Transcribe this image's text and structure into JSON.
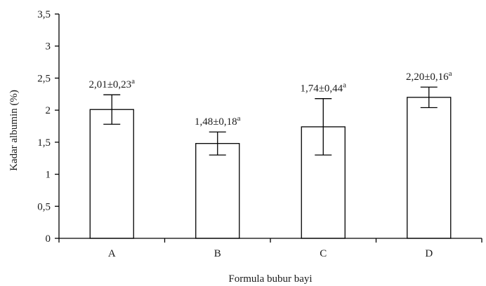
{
  "chart_data": {
    "type": "bar",
    "categories": [
      "A",
      "B",
      "C",
      "D"
    ],
    "values": [
      2.01,
      1.48,
      1.74,
      2.2
    ],
    "errors": [
      0.23,
      0.18,
      0.44,
      0.16
    ],
    "data_labels": [
      {
        "value": "2,01±0,23",
        "sup": "a"
      },
      {
        "value": "1,48±0,18",
        "sup": "a"
      },
      {
        "value": "1,74±0,44",
        "sup": "a"
      },
      {
        "value": "2,20±0,16",
        "sup": "a"
      }
    ],
    "title": "",
    "xlabel": "Formula bubur bayi",
    "ylabel": "Kadar albumin (%)",
    "ylim": [
      0,
      3.5
    ],
    "yticks": [
      0,
      0.5,
      1,
      1.5,
      2,
      2.5,
      3,
      3.5
    ],
    "ytick_labels": [
      "0",
      "0,5",
      "1",
      "1,5",
      "2",
      "2,5",
      "3",
      "3,5"
    ],
    "grid": false,
    "legend": "none",
    "bar_fill": "#ffffff",
    "bar_stroke": "#000000"
  }
}
